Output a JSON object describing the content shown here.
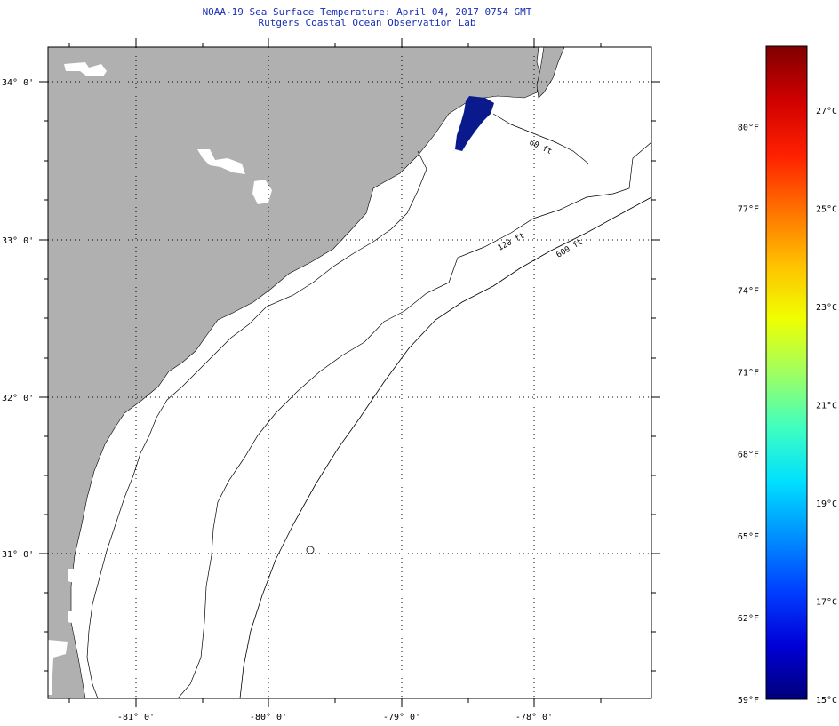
{
  "title": "NOAA-19 Sea Surface Temperature:  April 04, 2017 0754 GMT",
  "subtitle": "Rutgers Coastal Ocean Observation Lab",
  "map": {
    "lon_range": [
      -81.65,
      -77.45
    ],
    "lat_range": [
      30.05,
      34.2
    ],
    "lat_ticks": [
      {
        "value": 34,
        "label": "34° 0'"
      },
      {
        "value": 33,
        "label": "33° 0'"
      },
      {
        "value": 32,
        "label": "32° 0'"
      },
      {
        "value": 31,
        "label": "31° 0'"
      }
    ],
    "lon_ticks": [
      {
        "value": -81,
        "label": "-81° 0'"
      },
      {
        "value": -80,
        "label": "-80° 0'"
      },
      {
        "value": -79,
        "label": "-79° 0'"
      },
      {
        "value": -78,
        "label": "-78° 0'"
      }
    ],
    "contours": [
      {
        "label": "60 ft"
      },
      {
        "label": "120 ft"
      },
      {
        "label": "600 ft"
      }
    ],
    "colors": {
      "land": "#b0b0b0",
      "ocean": "#ffffff",
      "sst_patch": "#0a1a8c",
      "grid": "#000000"
    }
  },
  "colorbar": {
    "min_celsius": 15,
    "max_celsius": 28.3,
    "fahrenheit_labels": [
      "80°F",
      "77°F",
      "74°F",
      "71°F",
      "68°F",
      "65°F",
      "62°F",
      "59°F"
    ],
    "celsius_labels": [
      "27°C",
      "25°C",
      "23°C",
      "21°C",
      "19°C",
      "17°C",
      "15°C"
    ],
    "colors": [
      "#00007a",
      "#0000d8",
      "#0040ff",
      "#0090ff",
      "#00e0ff",
      "#40ffc0",
      "#a0ff60",
      "#f0ff00",
      "#ffc000",
      "#ff7000",
      "#ff2000",
      "#d00000",
      "#800000"
    ]
  }
}
